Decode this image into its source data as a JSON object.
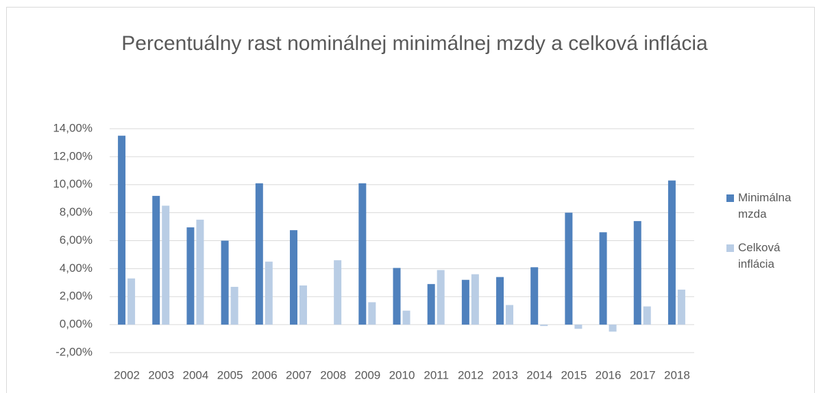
{
  "chart_data": {
    "type": "bar",
    "title": "Percentuálny rast nominálnej minimálnej mzdy a celková inflácia",
    "categories": [
      "2002",
      "2003",
      "2004",
      "2005",
      "2006",
      "2007",
      "2008",
      "2009",
      "2010",
      "2011",
      "2012",
      "2013",
      "2014",
      "2015",
      "2016",
      "2017",
      "2018"
    ],
    "series": [
      {
        "name": "Minimálna mzda",
        "color": "#4f81bd",
        "values": [
          13.5,
          9.2,
          6.95,
          6.0,
          10.1,
          6.75,
          0,
          10.1,
          4.05,
          2.9,
          3.2,
          3.4,
          4.1,
          8.0,
          6.6,
          7.4,
          10.3
        ]
      },
      {
        "name": "Celková inflácia",
        "color": "#b9cde5",
        "values": [
          3.3,
          8.5,
          7.5,
          2.7,
          4.5,
          2.8,
          4.6,
          1.6,
          1.0,
          3.9,
          3.6,
          1.4,
          -0.1,
          -0.3,
          -0.5,
          1.3,
          2.5
        ]
      }
    ],
    "ylim": [
      -2,
      14
    ],
    "yticks": [
      {
        "value": -2,
        "label": "-2,00%"
      },
      {
        "value": 0,
        "label": "0,00%"
      },
      {
        "value": 2,
        "label": "2,00%"
      },
      {
        "value": 4,
        "label": "4,00%"
      },
      {
        "value": 6,
        "label": "6,00%"
      },
      {
        "value": 8,
        "label": "8,00%"
      },
      {
        "value": 10,
        "label": "10,00%"
      },
      {
        "value": 12,
        "label": "12,00%"
      },
      {
        "value": 14,
        "label": "14,00%"
      }
    ],
    "grid": true,
    "legend": "right"
  }
}
